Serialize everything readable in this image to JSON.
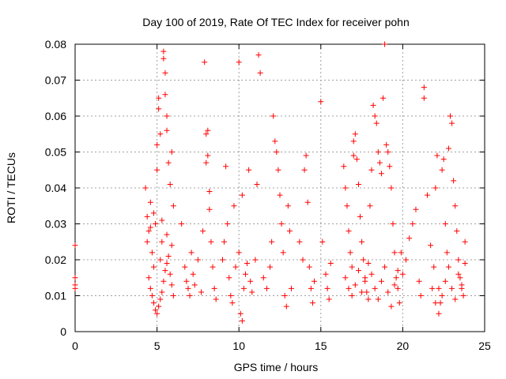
{
  "chart_data": {
    "type": "scatter",
    "title": "Day 100 of 2019, Rate Of TEC Index for receiver pohn",
    "xlabel": "GPS time / hours",
    "ylabel": "ROTI / TECUs",
    "xlim": [
      0,
      25
    ],
    "ylim": [
      0,
      0.08
    ],
    "xticks": [
      0,
      5,
      10,
      15,
      20,
      25
    ],
    "yticks": [
      0,
      0.01,
      0.02,
      0.03,
      0.04,
      0.05,
      0.06,
      0.07,
      0.08
    ],
    "xtick_labels": [
      "0",
      "5",
      "10",
      "15",
      "20",
      "25"
    ],
    "ytick_labels": [
      "0",
      "0.01",
      "0.02",
      "0.03",
      "0.04",
      "0.05",
      "0.06",
      "0.07",
      "0.08"
    ],
    "grid": true,
    "marker": "+",
    "marker_color": "#ff0000",
    "series": [
      {
        "name": "ROTI",
        "points": [
          [
            0.0,
            0.024
          ],
          [
            0.0,
            0.015
          ],
          [
            0.0,
            0.013
          ],
          [
            0.0,
            0.012
          ],
          [
            4.3,
            0.04
          ],
          [
            4.4,
            0.032
          ],
          [
            4.5,
            0.028
          ],
          [
            4.6,
            0.036
          ],
          [
            4.7,
            0.022
          ],
          [
            4.8,
            0.018
          ],
          [
            4.9,
            0.03
          ],
          [
            5.0,
            0.045
          ],
          [
            5.0,
            0.052
          ],
          [
            5.1,
            0.065
          ],
          [
            5.1,
            0.062
          ],
          [
            5.2,
            0.055
          ],
          [
            5.2,
            0.02
          ],
          [
            5.3,
            0.025
          ],
          [
            5.4,
            0.078
          ],
          [
            5.4,
            0.076
          ],
          [
            5.5,
            0.072
          ],
          [
            5.5,
            0.066
          ],
          [
            5.6,
            0.06
          ],
          [
            5.6,
            0.056
          ],
          [
            5.7,
            0.047
          ],
          [
            5.8,
            0.041
          ],
          [
            5.9,
            0.05
          ],
          [
            6.0,
            0.035
          ],
          [
            4.5,
            0.015
          ],
          [
            4.6,
            0.012
          ],
          [
            4.7,
            0.01
          ],
          [
            4.8,
            0.008
          ],
          [
            4.9,
            0.006
          ],
          [
            5.0,
            0.005
          ],
          [
            5.1,
            0.007
          ],
          [
            5.2,
            0.009
          ],
          [
            5.3,
            0.011
          ],
          [
            5.4,
            0.014
          ],
          [
            5.5,
            0.017
          ],
          [
            5.6,
            0.019
          ],
          [
            5.7,
            0.021
          ],
          [
            5.8,
            0.016
          ],
          [
            5.9,
            0.013
          ],
          [
            6.0,
            0.01
          ],
          [
            4.4,
            0.025
          ],
          [
            4.6,
            0.029
          ],
          [
            4.8,
            0.033
          ],
          [
            5.3,
            0.031
          ],
          [
            5.6,
            0.027
          ],
          [
            5.9,
            0.024
          ],
          [
            6.5,
            0.03
          ],
          [
            6.8,
            0.014
          ],
          [
            6.9,
            0.012
          ],
          [
            7.0,
            0.01
          ],
          [
            7.2,
            0.016
          ],
          [
            7.3,
            0.013
          ],
          [
            7.5,
            0.02
          ],
          [
            7.7,
            0.011
          ],
          [
            7.8,
            0.028
          ],
          [
            8.0,
            0.047
          ],
          [
            8.0,
            0.055
          ],
          [
            8.1,
            0.056
          ],
          [
            8.1,
            0.049
          ],
          [
            8.2,
            0.034
          ],
          [
            8.3,
            0.025
          ],
          [
            8.4,
            0.018
          ],
          [
            8.5,
            0.012
          ],
          [
            8.6,
            0.009
          ],
          [
            7.9,
            0.075
          ],
          [
            8.2,
            0.039
          ],
          [
            7.1,
            0.022
          ],
          [
            6.7,
            0.018
          ],
          [
            9.0,
            0.02
          ],
          [
            9.1,
            0.025
          ],
          [
            9.2,
            0.046
          ],
          [
            9.3,
            0.03
          ],
          [
            9.4,
            0.015
          ],
          [
            9.5,
            0.01
          ],
          [
            9.6,
            0.008
          ],
          [
            9.8,
            0.018
          ],
          [
            10.0,
            0.022
          ],
          [
            10.1,
            0.005
          ],
          [
            10.2,
            0.003
          ],
          [
            10.3,
            0.012
          ],
          [
            10.4,
            0.016
          ],
          [
            10.5,
            0.019
          ],
          [
            10.6,
            0.045
          ],
          [
            10.0,
            0.075
          ],
          [
            10.7,
            0.014
          ],
          [
            10.8,
            0.011
          ],
          [
            9.7,
            0.035
          ],
          [
            10.2,
            0.038
          ],
          [
            11.0,
            0.02
          ],
          [
            11.1,
            0.041
          ],
          [
            11.2,
            0.077
          ],
          [
            11.3,
            0.072
          ],
          [
            11.5,
            0.015
          ],
          [
            11.7,
            0.012
          ],
          [
            11.9,
            0.018
          ],
          [
            12.0,
            0.025
          ],
          [
            12.1,
            0.06
          ],
          [
            12.2,
            0.053
          ],
          [
            12.3,
            0.05
          ],
          [
            12.4,
            0.045
          ],
          [
            12.5,
            0.038
          ],
          [
            12.6,
            0.03
          ],
          [
            12.7,
            0.022
          ],
          [
            12.8,
            0.01
          ],
          [
            12.9,
            0.007
          ],
          [
            13.0,
            0.035
          ],
          [
            13.1,
            0.028
          ],
          [
            13.2,
            0.012
          ],
          [
            13.7,
            0.025
          ],
          [
            13.9,
            0.02
          ],
          [
            14.0,
            0.045
          ],
          [
            14.1,
            0.049
          ],
          [
            14.2,
            0.036
          ],
          [
            14.3,
            0.018
          ],
          [
            14.4,
            0.012
          ],
          [
            14.5,
            0.008
          ],
          [
            14.6,
            0.014
          ],
          [
            15.0,
            0.064
          ],
          [
            15.1,
            0.025
          ],
          [
            15.3,
            0.016
          ],
          [
            15.4,
            0.012
          ],
          [
            15.5,
            0.009
          ],
          [
            15.6,
            0.019
          ],
          [
            16.4,
            0.046
          ],
          [
            16.5,
            0.04
          ],
          [
            16.6,
            0.035
          ],
          [
            16.7,
            0.028
          ],
          [
            16.8,
            0.022
          ],
          [
            16.9,
            0.018
          ],
          [
            17.0,
            0.049
          ],
          [
            17.0,
            0.053
          ],
          [
            17.1,
            0.055
          ],
          [
            17.2,
            0.048
          ],
          [
            17.3,
            0.041
          ],
          [
            17.4,
            0.032
          ],
          [
            17.5,
            0.025
          ],
          [
            17.6,
            0.02
          ],
          [
            17.7,
            0.015
          ],
          [
            17.8,
            0.011
          ],
          [
            17.9,
            0.009
          ],
          [
            18.0,
            0.035
          ],
          [
            18.1,
            0.045
          ],
          [
            18.2,
            0.063
          ],
          [
            18.3,
            0.06
          ],
          [
            18.4,
            0.058
          ],
          [
            18.5,
            0.05
          ],
          [
            18.6,
            0.047
          ],
          [
            18.7,
            0.044
          ],
          [
            18.8,
            0.065
          ],
          [
            18.9,
            0.08
          ],
          [
            19.0,
            0.052
          ],
          [
            19.1,
            0.05
          ],
          [
            19.2,
            0.046
          ],
          [
            19.3,
            0.04
          ],
          [
            19.4,
            0.03
          ],
          [
            19.5,
            0.022
          ],
          [
            19.6,
            0.015
          ],
          [
            19.7,
            0.012
          ],
          [
            19.8,
            0.008
          ],
          [
            16.5,
            0.015
          ],
          [
            16.7,
            0.012
          ],
          [
            16.9,
            0.01
          ],
          [
            17.1,
            0.013
          ],
          [
            17.3,
            0.017
          ],
          [
            17.5,
            0.011
          ],
          [
            17.7,
            0.014
          ],
          [
            17.9,
            0.019
          ],
          [
            18.1,
            0.016
          ],
          [
            18.3,
            0.012
          ],
          [
            18.5,
            0.009
          ],
          [
            18.7,
            0.014
          ],
          [
            18.9,
            0.018
          ],
          [
            19.1,
            0.011
          ],
          [
            19.3,
            0.007
          ],
          [
            19.5,
            0.013
          ],
          [
            19.7,
            0.017
          ],
          [
            19.9,
            0.022
          ],
          [
            20.0,
            0.016
          ],
          [
            20.2,
            0.02
          ],
          [
            20.4,
            0.026
          ],
          [
            20.6,
            0.03
          ],
          [
            20.8,
            0.034
          ],
          [
            21.0,
            0.014
          ],
          [
            21.1,
            0.01
          ],
          [
            21.3,
            0.065
          ],
          [
            21.3,
            0.068
          ],
          [
            21.5,
            0.038
          ],
          [
            21.7,
            0.024
          ],
          [
            21.9,
            0.018
          ],
          [
            22.0,
            0.04
          ],
          [
            22.1,
            0.049
          ],
          [
            22.2,
            0.012
          ],
          [
            22.3,
            0.008
          ],
          [
            22.4,
            0.045
          ],
          [
            22.5,
            0.048
          ],
          [
            22.6,
            0.03
          ],
          [
            22.7,
            0.022
          ],
          [
            22.8,
            0.051
          ],
          [
            22.9,
            0.06
          ],
          [
            23.0,
            0.058
          ],
          [
            23.1,
            0.042
          ],
          [
            23.2,
            0.035
          ],
          [
            23.3,
            0.028
          ],
          [
            23.4,
            0.02
          ],
          [
            23.5,
            0.015
          ],
          [
            23.6,
            0.012
          ],
          [
            23.7,
            0.01
          ],
          [
            23.8,
            0.025
          ],
          [
            21.8,
            0.012
          ],
          [
            22.0,
            0.008
          ],
          [
            22.2,
            0.005
          ],
          [
            22.4,
            0.01
          ],
          [
            22.6,
            0.014
          ],
          [
            22.8,
            0.018
          ],
          [
            23.0,
            0.012
          ],
          [
            23.2,
            0.009
          ],
          [
            23.4,
            0.016
          ],
          [
            23.6,
            0.013
          ],
          [
            23.8,
            0.019
          ]
        ]
      }
    ]
  }
}
